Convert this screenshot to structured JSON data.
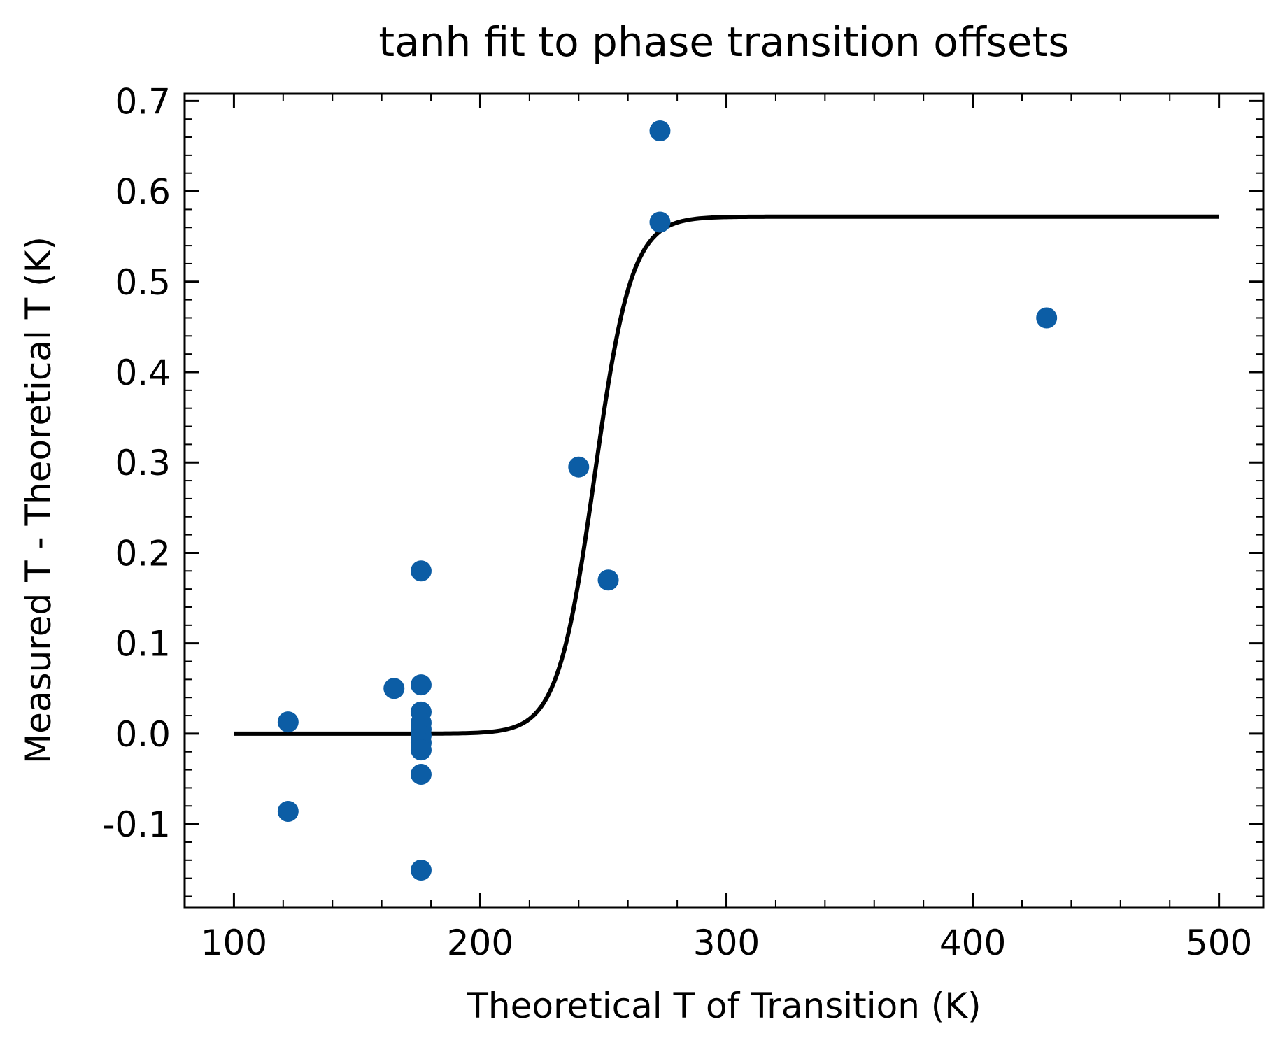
{
  "chart_data": {
    "type": "scatter",
    "title": "tanh fit to phase transition offsets",
    "xlabel": "Theoretical T of Transition (K)",
    "ylabel": "Measured T - Theoretical T (K)",
    "xlim": [
      80,
      518
    ],
    "ylim": [
      -0.192,
      0.708
    ],
    "xticks": [
      100,
      200,
      300,
      400,
      500
    ],
    "xtick_labels": [
      "100",
      "200",
      "300",
      "400",
      "500"
    ],
    "yticks": [
      -0.1,
      0.0,
      0.1,
      0.2,
      0.3,
      0.4,
      0.5,
      0.6,
      0.7
    ],
    "ytick_labels": [
      "-0.1",
      "0.0",
      "0.1",
      "0.2",
      "0.3",
      "0.4",
      "0.5",
      "0.6",
      "0.7"
    ],
    "grid": false,
    "series": [
      {
        "kind": "scatter",
        "color": "#0c5da5",
        "points": [
          {
            "x": 122,
            "y": 0.013
          },
          {
            "x": 122,
            "y": -0.086
          },
          {
            "x": 165,
            "y": 0.05
          },
          {
            "x": 176,
            "y": 0.18
          },
          {
            "x": 176,
            "y": 0.054
          },
          {
            "x": 176,
            "y": 0.024
          },
          {
            "x": 176,
            "y": 0.012
          },
          {
            "x": 176,
            "y": 0.005
          },
          {
            "x": 176,
            "y": -0.002
          },
          {
            "x": 176,
            "y": -0.01
          },
          {
            "x": 176,
            "y": -0.018
          },
          {
            "x": 176,
            "y": -0.045
          },
          {
            "x": 176,
            "y": -0.151
          },
          {
            "x": 240,
            "y": 0.295
          },
          {
            "x": 252,
            "y": 0.17
          },
          {
            "x": 273,
            "y": 0.667
          },
          {
            "x": 273,
            "y": 0.566
          },
          {
            "x": 430,
            "y": 0.46
          }
        ]
      },
      {
        "kind": "line",
        "color": "#000000",
        "model": "tanh",
        "params": {
          "amplitude": 0.286,
          "offset": 0.286,
          "center": 246.5,
          "width": 15
        },
        "x_range": [
          100,
          500
        ]
      }
    ]
  }
}
